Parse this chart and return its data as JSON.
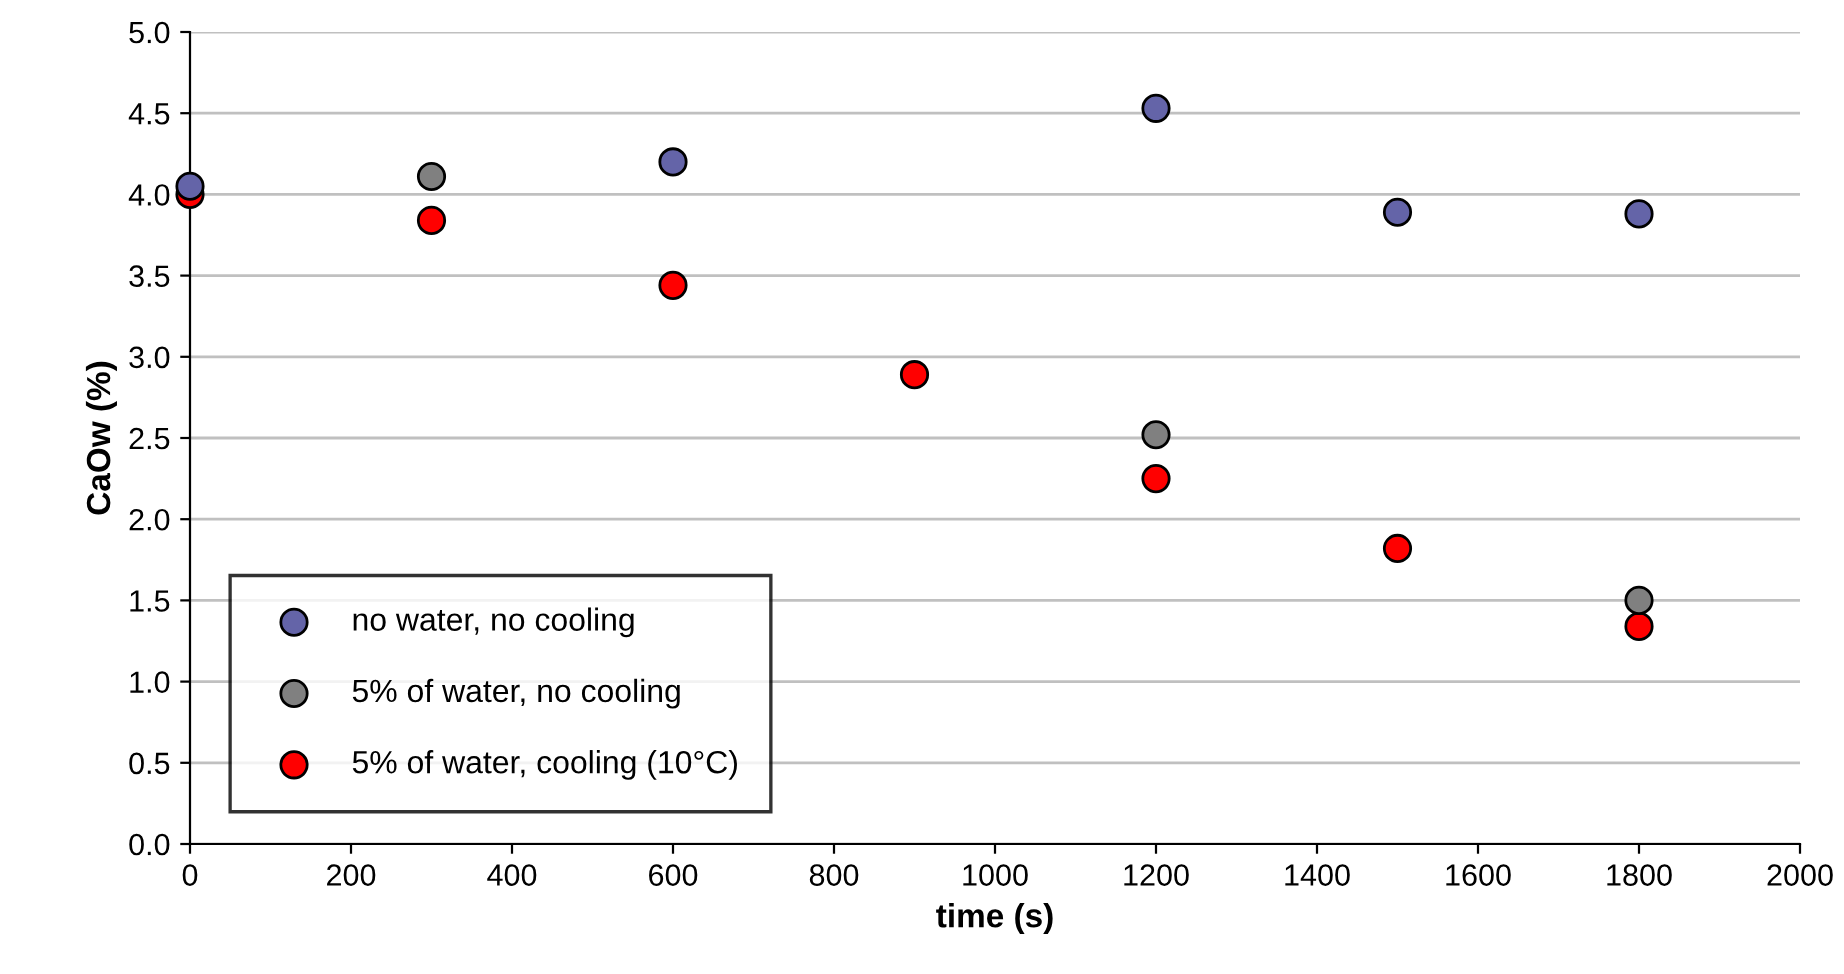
{
  "chart_data": {
    "type": "scatter",
    "xlabel": "time (s)",
    "ylabel": "CaOw (%)",
    "xlim": [
      0,
      2000
    ],
    "xticks": [
      0,
      200,
      400,
      600,
      800,
      1000,
      1200,
      1400,
      1600,
      1800,
      2000
    ],
    "ylim": [
      0,
      5
    ],
    "yticks": [
      {
        "value": 0,
        "label": "0.0"
      },
      {
        "value": 0.5,
        "label": "0.5"
      },
      {
        "value": 1,
        "label": "1.0"
      },
      {
        "value": 1.5,
        "label": "1.5"
      },
      {
        "value": 2,
        "label": "2.0"
      },
      {
        "value": 2.5,
        "label": "2.5"
      },
      {
        "value": 3,
        "label": "3.0"
      },
      {
        "value": 3.5,
        "label": "3.5"
      },
      {
        "value": 4,
        "label": "4.0"
      },
      {
        "value": 4.5,
        "label": "4.5"
      },
      {
        "value": 5,
        "label": "5.0"
      }
    ],
    "grid": "y",
    "legend": "bottom left",
    "marker": "circle",
    "series": [
      {
        "name": "no water, no cooling",
        "color": "#6464a8",
        "x": [
          0,
          600,
          1200,
          1500,
          1800
        ],
        "values": [
          4.05,
          4.2,
          4.53,
          3.89,
          3.88
        ]
      },
      {
        "name": "5% of water, no cooling",
        "color": "#808080",
        "x": [
          300,
          1200,
          1800
        ],
        "values": [
          4.11,
          2.52,
          1.5
        ]
      },
      {
        "name": "5% of water, cooling (10°C)",
        "color": "#ff0000",
        "x": [
          0,
          300,
          600,
          900,
          1200,
          1500,
          1800
        ],
        "values": [
          4.0,
          3.84,
          3.44,
          2.89,
          2.25,
          1.82,
          1.34
        ]
      }
    ]
  }
}
